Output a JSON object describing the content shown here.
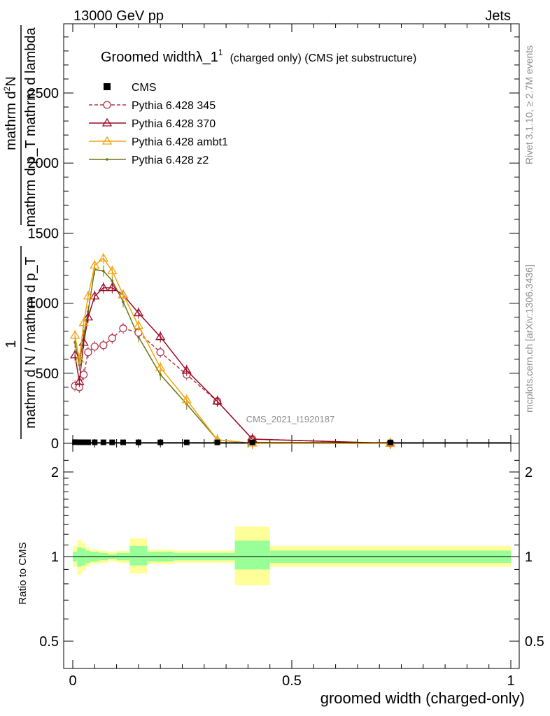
{
  "header": {
    "left": "13000 GeV pp",
    "right": "Jets"
  },
  "title": {
    "main": "Groomed widthλ_1",
    "sup": "1",
    "sub": "(charged only) (CMS jet substructure)"
  },
  "side_labels": {
    "rivet": "Rivet 3.1.10, ≥ 2.7M events",
    "mcplots": "mcplots.cern.ch [arXiv:1306.3436]"
  },
  "watermark": "CMS_2021_I1920187",
  "ylabel_main": {
    "frac1_num": "mathrm d",
    "frac1_sup": "2",
    "frac1_rest": "N",
    "frac1_den": "mathrm d p_T mathrm d lambda",
    "frac2_num": "1",
    "frac2_den": "mathrm d N / mathrm d p_T"
  },
  "ylabel_ratio": "Ratio to CMS",
  "xlabel": "groomed width (charged-only)",
  "legend": [
    {
      "label": "CMS",
      "color": "#000000",
      "marker": "square",
      "dashed": false
    },
    {
      "label": "Pythia 6.428 345",
      "color": "#b2374c",
      "marker": "circle",
      "dashed": true
    },
    {
      "label": "Pythia 6.428 370",
      "color": "#990a24",
      "marker": "triangle",
      "dashed": false
    },
    {
      "label": "Pythia 6.428 ambt1",
      "color": "#f1a40e",
      "marker": "triangle",
      "dashed": false
    },
    {
      "label": "Pythia 6.428 z2",
      "color": "#6d7514",
      "marker": "dot",
      "dashed": false
    }
  ],
  "chart_data": {
    "type": "line",
    "xlim": [
      -0.02,
      1.02
    ],
    "ylim_main": [
      0,
      3000
    ],
    "ylim_ratio": [
      0.4,
      2.4
    ],
    "log_ratio": true,
    "xticks": [
      0,
      0.5,
      1
    ],
    "xtick_labels": [
      "0",
      "0.5",
      "1"
    ],
    "yticks_main": [
      0,
      500,
      1000,
      1500,
      2000,
      2500
    ],
    "ytick_labels_main": [
      "0",
      "500",
      "1000",
      "1500",
      "2000",
      "2500"
    ],
    "yticks_ratio": [
      0.5,
      1,
      2
    ],
    "ytick_labels_ratio": [
      "0.5",
      "1",
      "2"
    ],
    "bins": [
      0,
      0.01,
      0.02,
      0.03,
      0.04,
      0.06,
      0.08,
      0.1,
      0.13,
      0.17,
      0.23,
      0.29,
      0.37,
      0.45,
      1.0
    ],
    "cms": [
      3.0,
      2.5,
      2.4,
      2.3,
      2.2,
      2.1,
      2.0,
      1.9,
      1.8,
      1.7,
      1.6,
      1.5,
      1.3,
      0.9
    ],
    "ratio_inner": [
      [
        0.96,
        1.04
      ],
      [
        0.92,
        1.08
      ],
      [
        0.93,
        1.07
      ],
      [
        0.95,
        1.05
      ],
      [
        0.96,
        1.04
      ],
      [
        0.97,
        1.03
      ],
      [
        0.98,
        1.02
      ],
      [
        0.97,
        1.03
      ],
      [
        0.93,
        1.09
      ],
      [
        0.96,
        1.04
      ],
      [
        0.97,
        1.03
      ],
      [
        0.97,
        1.03
      ],
      [
        0.9,
        1.14
      ],
      [
        0.95,
        1.05
      ]
    ],
    "ratio_outer": [
      [
        0.92,
        1.09
      ],
      [
        0.86,
        1.15
      ],
      [
        0.89,
        1.12
      ],
      [
        0.92,
        1.08
      ],
      [
        0.94,
        1.06
      ],
      [
        0.95,
        1.05
      ],
      [
        0.96,
        1.04
      ],
      [
        0.95,
        1.05
      ],
      [
        0.87,
        1.16
      ],
      [
        0.94,
        1.06
      ],
      [
        0.95,
        1.05
      ],
      [
        0.95,
        1.05
      ],
      [
        0.79,
        1.28
      ],
      [
        0.92,
        1.09
      ]
    ],
    "series": [
      {
        "name": "Pythia 6.428 345",
        "x": [
          0.005,
          0.015,
          0.025,
          0.035,
          0.05,
          0.07,
          0.09,
          0.115,
          0.15,
          0.2,
          0.26,
          0.33,
          0.41,
          0.725
        ],
        "y": [
          410,
          400,
          490,
          650,
          690,
          700,
          750,
          820,
          790,
          650,
          490,
          300,
          30,
          0
        ]
      },
      {
        "name": "Pythia 6.428 370",
        "x": [
          0.005,
          0.015,
          0.025,
          0.035,
          0.05,
          0.07,
          0.09,
          0.115,
          0.15,
          0.2,
          0.26,
          0.33,
          0.41,
          0.725
        ],
        "y": [
          630,
          440,
          720,
          900,
          1050,
          1110,
          1110,
          1060,
          930,
          760,
          520,
          300,
          30,
          0
        ]
      },
      {
        "name": "Pythia 6.428 ambt1",
        "x": [
          0.005,
          0.015,
          0.025,
          0.035,
          0.05,
          0.07,
          0.09,
          0.115,
          0.15,
          0.2,
          0.26,
          0.33,
          0.41,
          0.725
        ],
        "y": [
          770,
          600,
          860,
          1050,
          1270,
          1320,
          1230,
          1060,
          840,
          540,
          310,
          25,
          0,
          0
        ]
      },
      {
        "name": "Pythia 6.428 z2",
        "x": [
          0.005,
          0.015,
          0.025,
          0.035,
          0.05,
          0.07,
          0.09,
          0.115,
          0.15,
          0.2,
          0.26,
          0.33,
          0.41,
          0.725
        ],
        "y": [
          720,
          560,
          770,
          940,
          1240,
          1230,
          1160,
          1010,
          760,
          490,
          280,
          25,
          0,
          0
        ]
      }
    ]
  }
}
